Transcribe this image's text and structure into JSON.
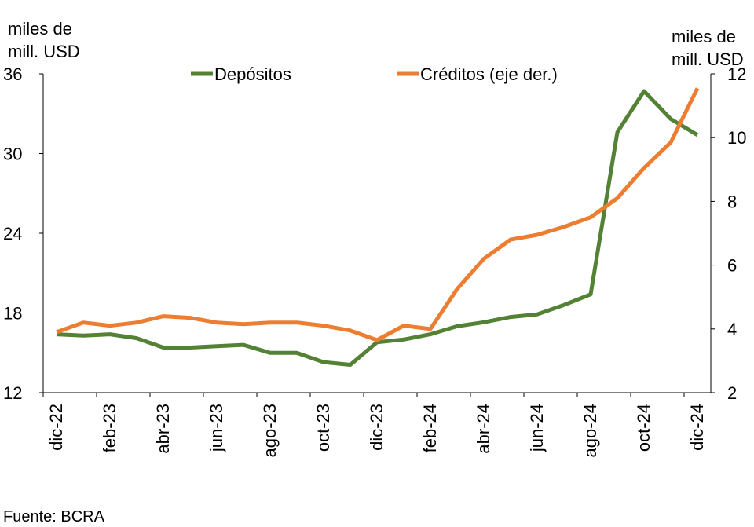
{
  "chart_data": {
    "type": "line",
    "y_label": [
      "miles de",
      "mill. USD"
    ],
    "y2_label": [
      "miles de",
      "mill. USD"
    ],
    "source": "Fuente: BCRA",
    "categories": [
      "dic-22",
      null,
      "feb-23",
      null,
      "abr-23",
      null,
      "jun-23",
      null,
      "ago-23",
      null,
      "oct-23",
      null,
      "dic-23",
      null,
      "feb-24",
      null,
      "abr-24",
      null,
      "jun-24",
      null,
      "ago-24",
      null,
      "oct-24",
      null,
      "dic-24"
    ],
    "series": [
      {
        "name": "Depósitos",
        "color": "#548235",
        "values": [
          16.4,
          16.3,
          16.4,
          16.1,
          15.4,
          15.4,
          15.5,
          15.6,
          15.0,
          15.0,
          14.3,
          14.1,
          15.8,
          16.0,
          16.4,
          17.0,
          17.3,
          17.7,
          17.9,
          18.6,
          19.4,
          31.6,
          34.7,
          32.6,
          31.4
        ]
      },
      {
        "name": "Créditos (eje der.)",
        "color": "#ed7d31",
        "axis": "y2",
        "values": [
          3.9,
          4.2,
          4.1,
          4.2,
          4.4,
          4.35,
          4.2,
          4.15,
          4.2,
          4.2,
          4.1,
          3.95,
          3.65,
          4.1,
          4.0,
          5.25,
          6.2,
          6.8,
          6.95,
          7.2,
          7.5,
          8.1,
          9.05,
          9.85,
          11.55
        ]
      }
    ],
    "ylim": [
      12,
      36
    ],
    "yticks": [
      12,
      18,
      24,
      30,
      36
    ],
    "y2lim": [
      2,
      12
    ],
    "y2ticks": [
      2,
      4,
      6,
      8,
      10,
      12
    ],
    "legend": "top"
  }
}
